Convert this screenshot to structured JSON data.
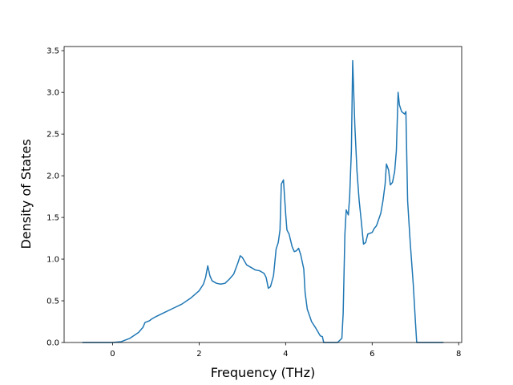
{
  "chart_data": {
    "type": "line",
    "xlabel": "Frequency (THz)",
    "ylabel": "Density of States",
    "xlim": [
      -1.12,
      8.07
    ],
    "ylim": [
      0,
      3.55
    ],
    "xticks": [
      0,
      2,
      4,
      6,
      8
    ],
    "yticks": [
      {
        "value": 0,
        "label": "0.0"
      },
      {
        "value": 0.5,
        "label": "0.5"
      },
      {
        "value": 1,
        "label": "1.0"
      },
      {
        "value": 1.5,
        "label": "1.5"
      },
      {
        "value": 2,
        "label": "2.0"
      },
      {
        "value": 2.5,
        "label": "2.5"
      },
      {
        "value": 3,
        "label": "3.0"
      },
      {
        "value": 3.5,
        "label": "3.5"
      }
    ],
    "color": "#1f77b4",
    "x": [
      -0.7,
      0,
      0.2,
      0.4,
      0.6,
      0.7,
      0.75,
      0.85,
      0.9,
      1.0,
      1.2,
      1.4,
      1.6,
      1.8,
      2.0,
      2.1,
      2.15,
      2.2,
      2.25,
      2.3,
      2.4,
      2.5,
      2.6,
      2.7,
      2.8,
      2.9,
      2.95,
      3.0,
      3.1,
      3.2,
      3.3,
      3.4,
      3.5,
      3.55,
      3.6,
      3.65,
      3.72,
      3.78,
      3.83,
      3.87,
      3.9,
      3.95,
      4.0,
      4.03,
      4.08,
      4.15,
      4.2,
      4.25,
      4.3,
      4.35,
      4.42,
      4.45,
      4.5,
      4.6,
      4.7,
      4.8,
      4.85,
      4.88,
      5.2,
      5.3,
      5.33,
      5.37,
      5.4,
      5.45,
      5.48,
      5.52,
      5.55,
      5.6,
      5.65,
      5.7,
      5.75,
      5.8,
      5.85,
      5.9,
      6.0,
      6.05,
      6.1,
      6.2,
      6.25,
      6.3,
      6.33,
      6.38,
      6.42,
      6.47,
      6.52,
      6.56,
      6.6,
      6.63,
      6.68,
      6.75,
      6.78,
      6.82,
      6.88,
      6.95,
      7.0,
      7.03,
      7.65
    ],
    "values": [
      0,
      0,
      0.01,
      0.05,
      0.12,
      0.18,
      0.24,
      0.26,
      0.28,
      0.31,
      0.36,
      0.41,
      0.46,
      0.53,
      0.62,
      0.7,
      0.78,
      0.92,
      0.8,
      0.74,
      0.71,
      0.7,
      0.71,
      0.76,
      0.82,
      0.96,
      1.04,
      1.02,
      0.93,
      0.9,
      0.87,
      0.86,
      0.83,
      0.78,
      0.65,
      0.67,
      0.8,
      1.12,
      1.2,
      1.35,
      1.9,
      1.95,
      1.55,
      1.35,
      1.3,
      1.15,
      1.09,
      1.1,
      1.13,
      1.05,
      0.88,
      0.6,
      0.4,
      0.25,
      0.17,
      0.08,
      0.07,
      0,
      0,
      0.05,
      0.35,
      1.3,
      1.59,
      1.53,
      1.75,
      2.3,
      3.38,
      2.6,
      2.05,
      1.7,
      1.45,
      1.18,
      1.2,
      1.3,
      1.32,
      1.37,
      1.4,
      1.55,
      1.7,
      1.9,
      2.14,
      2.07,
      1.89,
      1.92,
      2.05,
      2.3,
      3.0,
      2.85,
      2.77,
      2.74,
      2.77,
      1.7,
      1.2,
      0.7,
      0.25,
      0,
      0
    ]
  }
}
